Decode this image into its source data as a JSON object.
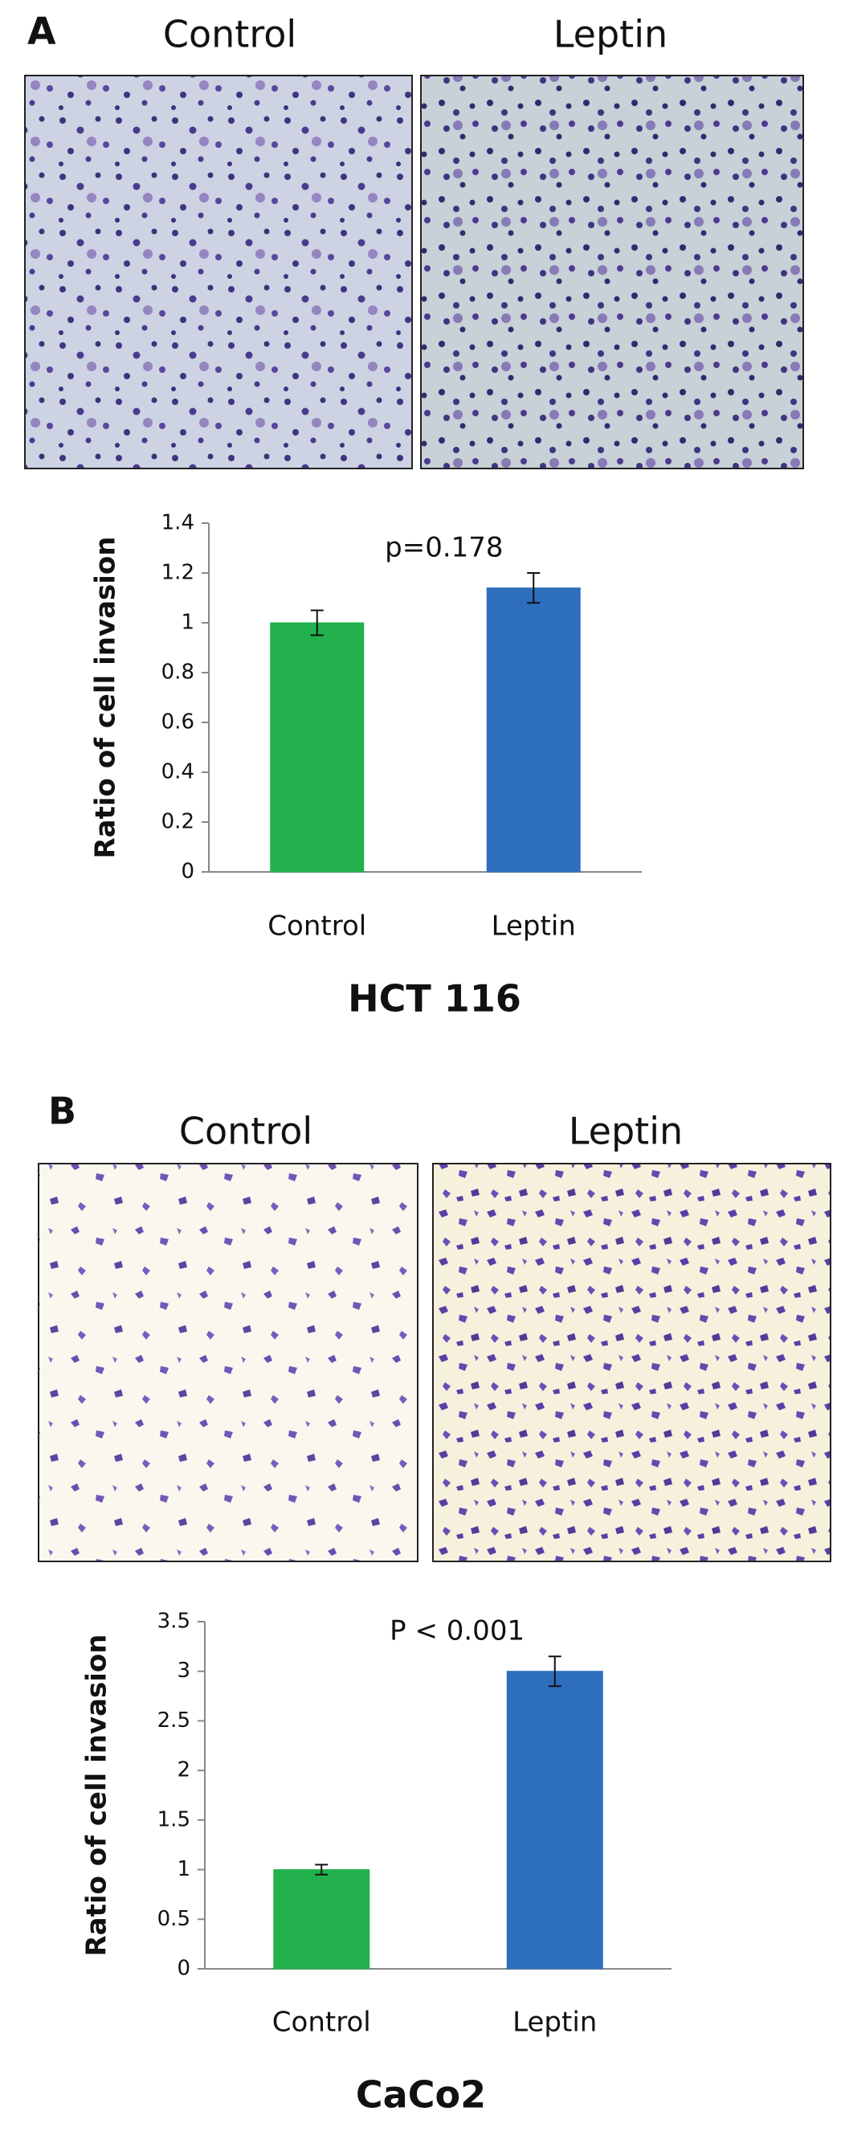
{
  "panels": [
    {
      "label": "A",
      "images": [
        "Control",
        "Leptin"
      ]
    },
    {
      "label": "B",
      "images": [
        "Control",
        "Leptin"
      ]
    }
  ],
  "chart_data": [
    {
      "type": "bar",
      "title": "HCT 116",
      "ylabel": "Ratio of cell invasion",
      "categories": [
        "Control",
        "Leptin"
      ],
      "values": [
        1.0,
        1.14
      ],
      "errors": [
        0.05,
        0.06
      ],
      "colors": [
        "#22b14c",
        "#2e6fbd"
      ],
      "ylim": [
        0,
        1.4
      ],
      "yticks": [
        0,
        0.2,
        0.4,
        0.6,
        0.8,
        1,
        1.2,
        1.4
      ],
      "annotation": "p=0.178"
    },
    {
      "type": "bar",
      "title": "CaCo2",
      "ylabel": "Ratio of cell invasion",
      "categories": [
        "Control",
        "Leptin"
      ],
      "values": [
        1.0,
        3.0
      ],
      "errors": [
        0.05,
        0.15
      ],
      "colors": [
        "#22b14c",
        "#2e6fbd"
      ],
      "ylim": [
        0,
        3.5
      ],
      "yticks": [
        0,
        0.5,
        1,
        1.5,
        2,
        2.5,
        3,
        3.5
      ],
      "annotation": "P < 0.001"
    }
  ]
}
